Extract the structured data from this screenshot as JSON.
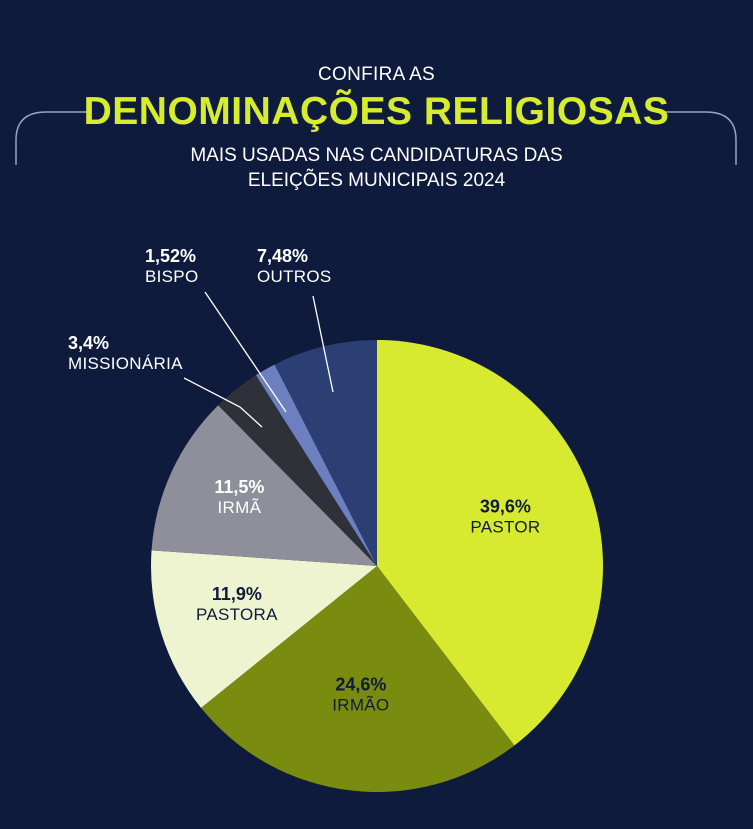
{
  "header": {
    "line1": "CONFIRA AS",
    "title": "DENOMINAÇÕES RELIGIOSAS",
    "line3": "MAIS USADAS NAS CANDIDATURAS DAS",
    "line4": "ELEIÇÕES MUNICIPAIS 2024"
  },
  "chart_data": {
    "type": "pie",
    "title": "DENOMINAÇÕES RELIGIOSAS",
    "slices": [
      {
        "label": "PASTOR",
        "value": 39.6,
        "value_label": "39,6%",
        "color": "#d8ea30"
      },
      {
        "label": "IRMÃO",
        "value": 24.6,
        "value_label": "24,6%",
        "color": "#7a8c10"
      },
      {
        "label": "PASTORA",
        "value": 11.9,
        "value_label": "11,9%",
        "color": "#eef4cf"
      },
      {
        "label": "IRMÃ",
        "value": 11.5,
        "value_label": "11,5%",
        "color": "#8e8f9a"
      },
      {
        "label": "MISSIONÁRIA",
        "value": 3.4,
        "value_label": "3,4%",
        "color": "#2f3138"
      },
      {
        "label": "BISPO",
        "value": 1.52,
        "value_label": "1,52%",
        "color": "#6c7fc0"
      },
      {
        "label": "OUTROS",
        "value": 7.48,
        "value_label": "7,48%",
        "color": "#2c3f74"
      }
    ]
  }
}
